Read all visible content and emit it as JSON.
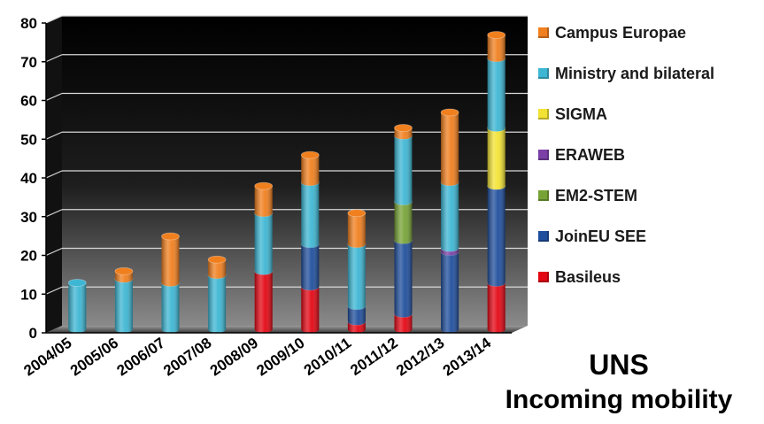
{
  "chart_data": {
    "type": "bar",
    "stacked": true,
    "style": "3d-cylinder",
    "categories": [
      "2004/05",
      "2005/06",
      "2006/07",
      "2007/08",
      "2008/09",
      "2009/10",
      "2010/11",
      "2011/12",
      "2012/13",
      "2013/14"
    ],
    "ylim": [
      0,
      80
    ],
    "yticks": [
      0,
      10,
      20,
      30,
      40,
      50,
      60,
      70,
      80
    ],
    "grid": true,
    "legend_position": "right",
    "series": [
      {
        "name": "Basileus",
        "color": "#e30613",
        "values": [
          0,
          0,
          0,
          0,
          15,
          11,
          2,
          4,
          0,
          12
        ]
      },
      {
        "name": "JoinEU SEE",
        "color": "#1f4e9c",
        "values": [
          0,
          0,
          0,
          0,
          0,
          11,
          4,
          19,
          20,
          25
        ]
      },
      {
        "name": "EM2-STEM",
        "color": "#77a336",
        "values": [
          0,
          0,
          0,
          0,
          0,
          0,
          0,
          10,
          0,
          0
        ]
      },
      {
        "name": "ERAWEB",
        "color": "#7b3fa6",
        "values": [
          0,
          0,
          0,
          0,
          0,
          0,
          0,
          0,
          1,
          0
        ]
      },
      {
        "name": "SIGMA",
        "color": "#f2e233",
        "values": [
          0,
          0,
          0,
          0,
          0,
          0,
          0,
          0,
          0,
          15
        ]
      },
      {
        "name": "Ministry and bilateral",
        "color": "#3db6d3",
        "values": [
          12,
          13,
          12,
          14,
          15,
          16,
          16,
          17,
          17,
          18
        ]
      },
      {
        "name": "Campus Europae",
        "color": "#f07f1e",
        "values": [
          0,
          2,
          12,
          4,
          7,
          7,
          8,
          2,
          18,
          6
        ]
      }
    ]
  },
  "caption": {
    "line1": "UNS",
    "line2": "Incoming mobility"
  }
}
